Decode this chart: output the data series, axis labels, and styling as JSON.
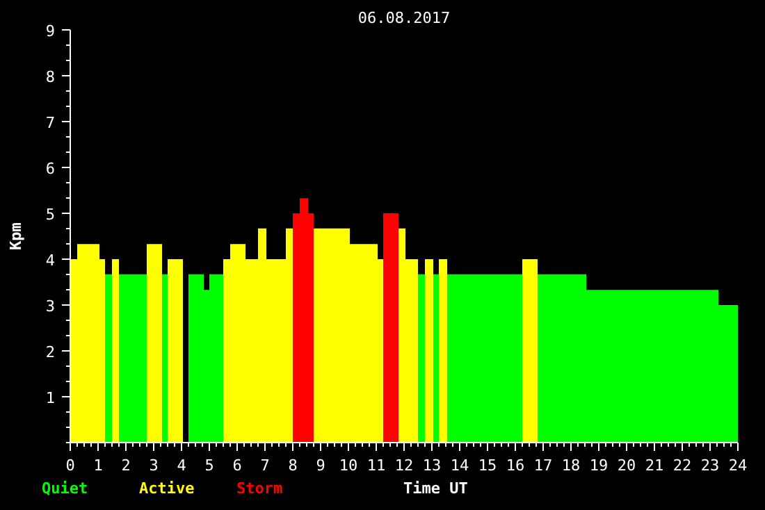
{
  "chart_data": {
    "type": "histogram",
    "title": "06.08.2017",
    "xlabel": "Time UT",
    "ylabel": "Kpm",
    "bins": [
      0,
      0.25,
      1.05,
      1.25,
      1.5,
      1.75,
      2.75,
      3.3,
      3.5,
      4.05,
      4.25,
      4.8,
      5.0,
      5.5,
      5.75,
      6.3,
      6.75,
      7.05,
      7.75,
      8.0,
      8.25,
      8.55,
      8.75,
      10.05,
      11.05,
      11.25,
      11.8,
      12.05,
      12.5,
      12.75,
      13.05,
      13.25,
      13.55,
      16.25,
      16.8,
      18.55,
      23.3,
      24
    ],
    "series": [
      {
        "name": "Quiet",
        "color": "#00ff00",
        "values": [
          null,
          null,
          null,
          3.67,
          null,
          3.67,
          null,
          3.67,
          null,
          null,
          3.67,
          3.33,
          3.67,
          null,
          null,
          null,
          null,
          null,
          null,
          null,
          null,
          null,
          null,
          null,
          null,
          null,
          null,
          null,
          3.67,
          null,
          3.67,
          null,
          3.67,
          null,
          3.67,
          3.33,
          3.0
        ]
      },
      {
        "name": "Active",
        "color": "#ffff00",
        "values": [
          4.0,
          4.33,
          4.0,
          null,
          4.0,
          null,
          4.33,
          null,
          4.0,
          null,
          null,
          null,
          null,
          4.0,
          4.33,
          4.0,
          4.67,
          4.0,
          4.67,
          null,
          null,
          null,
          4.67,
          4.33,
          4.0,
          null,
          4.67,
          4.0,
          null,
          4.0,
          null,
          4.0,
          null,
          4.0,
          null,
          null,
          null
        ]
      },
      {
        "name": "Storm",
        "color": "#ff0000",
        "values": [
          null,
          null,
          null,
          null,
          null,
          null,
          null,
          null,
          null,
          null,
          null,
          null,
          null,
          null,
          null,
          null,
          null,
          null,
          null,
          5.0,
          5.33,
          5.0,
          null,
          null,
          null,
          5.0,
          null,
          null,
          null,
          null,
          null,
          null,
          null,
          null,
          null,
          null,
          null
        ]
      }
    ],
    "xlim": [
      0,
      24
    ],
    "xticks": [
      0,
      1,
      2,
      3,
      4,
      5,
      6,
      7,
      8,
      9,
      10,
      11,
      12,
      13,
      14,
      15,
      16,
      17,
      18,
      19,
      20,
      21,
      22,
      23,
      24
    ],
    "ylim": [
      0,
      9
    ],
    "yticks": [
      1,
      2,
      3,
      4,
      5,
      6,
      7,
      8,
      9
    ]
  }
}
